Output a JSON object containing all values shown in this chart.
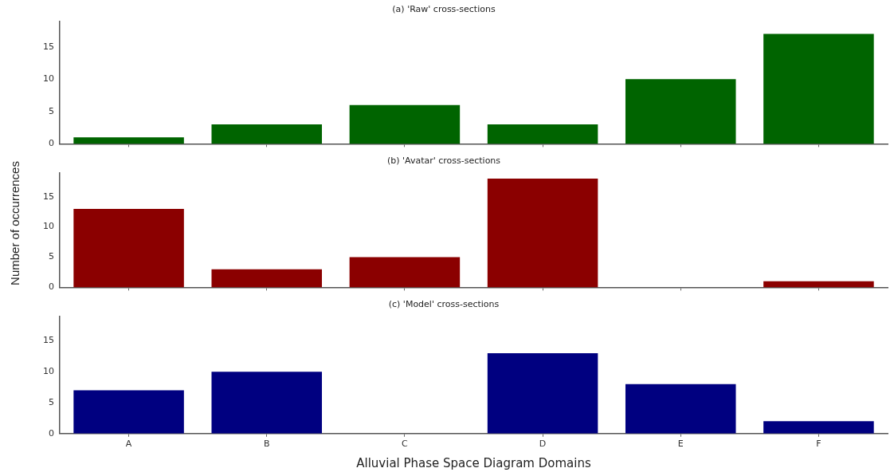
{
  "chart_data": [
    {
      "type": "bar",
      "title": "(a) 'Raw' cross-sections",
      "categories": [
        null,
        null,
        null,
        null,
        null,
        null
      ],
      "values": [
        1,
        3,
        6,
        3,
        10,
        17
      ],
      "color": "#006400",
      "ylim": [
        0,
        18.9
      ],
      "yticks": [
        0,
        5,
        10,
        15
      ],
      "tick_labels": "y",
      "grid": false
    },
    {
      "type": "bar",
      "title": "(b) 'Avatar' cross-sections",
      "ylabel": "Number of occurrences",
      "categories": [
        null,
        null,
        null,
        null,
        null,
        null
      ],
      "values": [
        13,
        3,
        5,
        18,
        0,
        1
      ],
      "color": "#8b0000",
      "ylim": [
        0,
        18.9
      ],
      "yticks": [
        0,
        5,
        10,
        15
      ],
      "tick_labels": "y",
      "grid": false
    },
    {
      "type": "bar",
      "title": "(c) 'Model' cross-sections",
      "xlabel": "Alluvial Phase Space Diagram Domains",
      "categories": [
        "A",
        "B",
        "C",
        "D",
        "E",
        "F"
      ],
      "values": [
        7,
        10,
        0,
        13,
        8,
        2
      ],
      "color": "#000080",
      "ylim": [
        0,
        18.9
      ],
      "yticks": [
        0,
        5,
        10,
        15
      ],
      "grid": false
    }
  ]
}
